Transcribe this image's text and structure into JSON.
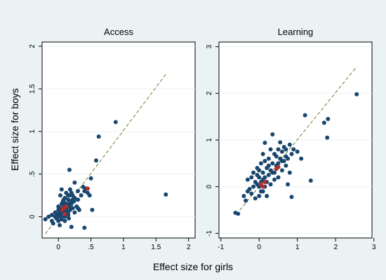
{
  "figure": {
    "ylabel": "Effect size for boys",
    "xlabel": "Effect size for girls",
    "background": "#eaf2f3",
    "panel_background": "#ffffff",
    "point_color": "#1a476f",
    "highlight_color": "#b22d2d",
    "fit_line_color": "#6e7a2c"
  },
  "chart_data": [
    {
      "type": "scatter",
      "title": "Access",
      "xlabel": "",
      "ylabel": "",
      "xlim": [
        -0.25,
        2.1
      ],
      "ylim": [
        -0.25,
        2.05
      ],
      "xticks": [
        0,
        0.5,
        1,
        1.5,
        2
      ],
      "xtick_labels": [
        "0",
        ".5",
        "1",
        "1.5",
        "2"
      ],
      "yticks": [
        0,
        0.5,
        1,
        1.5,
        2
      ],
      "ytick_labels": [
        "0",
        ".5",
        "1",
        "1.5",
        "2"
      ],
      "grid": true,
      "fit_line": [
        [
          -0.2,
          -0.2
        ],
        [
          1.65,
          1.67
        ]
      ],
      "points": [
        [
          -0.2,
          -0.03
        ],
        [
          -0.15,
          0.0
        ],
        [
          -0.1,
          -0.05
        ],
        [
          -0.1,
          0.02
        ],
        [
          -0.08,
          -0.08
        ],
        [
          -0.05,
          0.0
        ],
        [
          -0.05,
          0.05
        ],
        [
          -0.03,
          -0.02
        ],
        [
          -0.02,
          0.03
        ],
        [
          0.0,
          0.0
        ],
        [
          0.0,
          0.08
        ],
        [
          0.0,
          -0.05
        ],
        [
          0.0,
          0.12
        ],
        [
          0.02,
          0.02
        ],
        [
          0.02,
          0.06
        ],
        [
          0.02,
          -0.1
        ],
        [
          0.03,
          0.25
        ],
        [
          0.04,
          0.0
        ],
        [
          0.05,
          0.1
        ],
        [
          0.05,
          0.15
        ],
        [
          0.05,
          -0.03
        ],
        [
          0.06,
          0.04
        ],
        [
          0.07,
          0.18
        ],
        [
          0.08,
          0.2
        ],
        [
          0.08,
          0.07
        ],
        [
          0.1,
          0.0
        ],
        [
          0.1,
          0.05
        ],
        [
          0.1,
          0.22
        ],
        [
          0.1,
          -0.05
        ],
        [
          0.12,
          0.1
        ],
        [
          0.12,
          0.28
        ],
        [
          0.13,
          0.03
        ],
        [
          0.14,
          0.15
        ],
        [
          0.15,
          0.05
        ],
        [
          0.15,
          0.2
        ],
        [
          0.15,
          0.25
        ],
        [
          0.16,
          -0.02
        ],
        [
          0.17,
          0.12
        ],
        [
          0.17,
          0.55
        ],
        [
          0.18,
          0.25
        ],
        [
          0.18,
          0.08
        ],
        [
          0.19,
          0.18
        ],
        [
          0.2,
          0.28
        ],
        [
          0.2,
          0.1
        ],
        [
          0.2,
          0.15
        ],
        [
          0.2,
          -0.12
        ],
        [
          0.22,
          0.25
        ],
        [
          0.22,
          0.2
        ],
        [
          0.24,
          0.18
        ],
        [
          0.25,
          0.4
        ],
        [
          0.25,
          0.05
        ],
        [
          0.28,
          0.12
        ],
        [
          0.3,
          0.3
        ],
        [
          0.3,
          0.2
        ],
        [
          0.32,
          0.08
        ],
        [
          0.35,
          0.25
        ],
        [
          0.38,
          0.35
        ],
        [
          0.4,
          0.3
        ],
        [
          0.4,
          -0.13
        ],
        [
          0.42,
          0.33
        ],
        [
          0.45,
          0.28
        ],
        [
          0.48,
          0.25
        ],
        [
          0.5,
          0.45
        ],
        [
          0.52,
          0.08
        ],
        [
          0.58,
          0.66
        ],
        [
          0.62,
          0.94
        ],
        [
          0.88,
          1.11
        ],
        [
          1.65,
          0.26
        ],
        [
          0.15,
          0.02
        ],
        [
          0.05,
          0.32
        ],
        [
          0.1,
          0.16
        ],
        [
          0.18,
          0.32
        ],
        [
          0.08,
          0.12
        ],
        [
          0.25,
          0.22
        ],
        [
          0.03,
          0.07
        ],
        [
          0.12,
          0.07
        ],
        [
          0.22,
          0.1
        ],
        [
          0.3,
          0.1
        ]
      ],
      "highlight_points": [
        [
          0.06,
          0.08
        ],
        [
          0.08,
          0.1
        ],
        [
          0.1,
          0.03
        ],
        [
          0.12,
          0.12
        ],
        [
          0.45,
          0.33
        ]
      ]
    },
    {
      "type": "scatter",
      "title": "Learning",
      "xlabel": "",
      "ylabel": "",
      "xlim": [
        -1.05,
        2.95
      ],
      "ylim": [
        -1.1,
        3.1
      ],
      "xticks": [
        -1,
        0,
        1,
        2,
        3
      ],
      "xtick_labels": [
        "-1",
        "0",
        "1",
        "2",
        "3"
      ],
      "yticks": [
        -1,
        0,
        1,
        2,
        3
      ],
      "ytick_labels": [
        "-1",
        "0",
        "1",
        "2",
        "3"
      ],
      "grid": true,
      "fit_line": [
        [
          -0.6,
          -0.6
        ],
        [
          2.55,
          2.57
        ]
      ],
      "points": [
        [
          -0.62,
          -0.56
        ],
        [
          -0.55,
          -0.58
        ],
        [
          -0.4,
          -0.2
        ],
        [
          -0.35,
          -0.3
        ],
        [
          -0.3,
          -0.1
        ],
        [
          -0.3,
          0.15
        ],
        [
          -0.25,
          -0.05
        ],
        [
          -0.2,
          0.2
        ],
        [
          -0.2,
          -0.15
        ],
        [
          -0.15,
          0.0
        ],
        [
          -0.15,
          0.3
        ],
        [
          -0.1,
          0.1
        ],
        [
          -0.1,
          -0.25
        ],
        [
          -0.05,
          0.05
        ],
        [
          -0.05,
          0.4
        ],
        [
          0.0,
          0.0
        ],
        [
          0.0,
          0.2
        ],
        [
          0.0,
          -0.2
        ],
        [
          0.05,
          0.1
        ],
        [
          0.05,
          0.5
        ],
        [
          0.1,
          0.3
        ],
        [
          0.1,
          -0.1
        ],
        [
          0.1,
          0.7
        ],
        [
          0.15,
          0.2
        ],
        [
          0.15,
          0.0
        ],
        [
          0.15,
          0.94
        ],
        [
          0.2,
          0.4
        ],
        [
          0.2,
          0.1
        ],
        [
          0.2,
          -0.2
        ],
        [
          0.25,
          0.6
        ],
        [
          0.25,
          0.25
        ],
        [
          0.3,
          0.35
        ],
        [
          0.3,
          0.8
        ],
        [
          0.3,
          0.05
        ],
        [
          0.35,
          0.5
        ],
        [
          0.35,
          1.12
        ],
        [
          0.4,
          0.3
        ],
        [
          0.4,
          0.7
        ],
        [
          0.45,
          0.45
        ],
        [
          0.5,
          0.8
        ],
        [
          0.5,
          0.2
        ],
        [
          0.55,
          0.6
        ],
        [
          0.6,
          0.75
        ],
        [
          0.6,
          0.35
        ],
        [
          0.65,
          0.55
        ],
        [
          0.7,
          0.8
        ],
        [
          0.7,
          0.45
        ],
        [
          0.75,
          0.6
        ],
        [
          0.8,
          0.9
        ],
        [
          0.8,
          0.3
        ],
        [
          0.85,
          0.7
        ],
        [
          0.9,
          0.8
        ],
        [
          1.0,
          0.75
        ],
        [
          1.1,
          0.6
        ],
        [
          0.75,
          0.05
        ],
        [
          0.85,
          -0.22
        ],
        [
          1.2,
          1.53
        ],
        [
          1.35,
          0.13
        ],
        [
          1.7,
          1.37
        ],
        [
          1.78,
          1.05
        ],
        [
          1.8,
          1.45
        ],
        [
          2.55,
          1.98
        ],
        [
          0.45,
          0.65
        ],
        [
          0.55,
          0.95
        ],
        [
          0.65,
          0.85
        ],
        [
          0.25,
          0.45
        ],
        [
          0.05,
          -0.1
        ],
        [
          -0.05,
          0.25
        ],
        [
          0.15,
          0.55
        ],
        [
          0.35,
          0.3
        ],
        [
          0.5,
          0.5
        ],
        [
          0.4,
          0.15
        ],
        [
          0.6,
          0.55
        ],
        [
          0.7,
          0.65
        ],
        [
          0.0,
          0.35
        ],
        [
          0.1,
          0.15
        ]
      ],
      "highlight_points": [
        [
          0.05,
          0.05
        ],
        [
          0.1,
          0.0
        ],
        [
          0.15,
          0.1
        ],
        [
          0.45,
          0.38
        ],
        [
          0.5,
          0.42
        ]
      ]
    }
  ]
}
